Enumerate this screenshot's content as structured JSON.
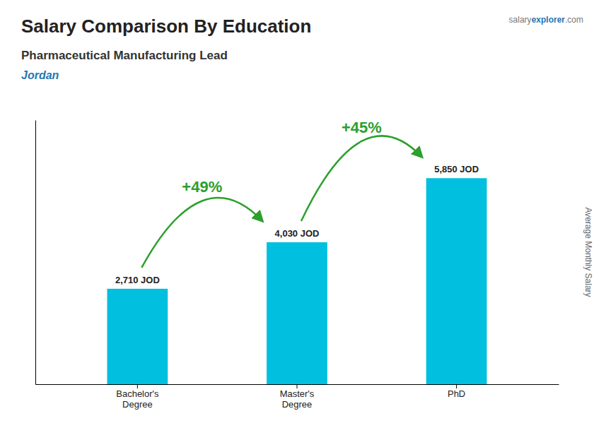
{
  "chart_data": {
    "type": "bar",
    "title": "Salary Comparison By Education",
    "subtitle": "Pharmaceutical Manufacturing Lead",
    "country": "Jordan",
    "watermark": [
      "salary",
      "explorer",
      ".com"
    ],
    "y_label": "Average Monthly Salary",
    "categories": [
      "Bachelor's\nDegree",
      "Master's\nDegree",
      "PhD"
    ],
    "values": [
      2710,
      4030,
      5850
    ],
    "value_labels": [
      "2,710 JOD",
      "4,030 JOD",
      "5,850 JOD"
    ],
    "data_labels": true,
    "annotations": [
      "+49%",
      "+45%"
    ],
    "color": "#00bfdf",
    "ylim": [
      0,
      7500
    ],
    "tick_labels": "x",
    "grid": false
  }
}
